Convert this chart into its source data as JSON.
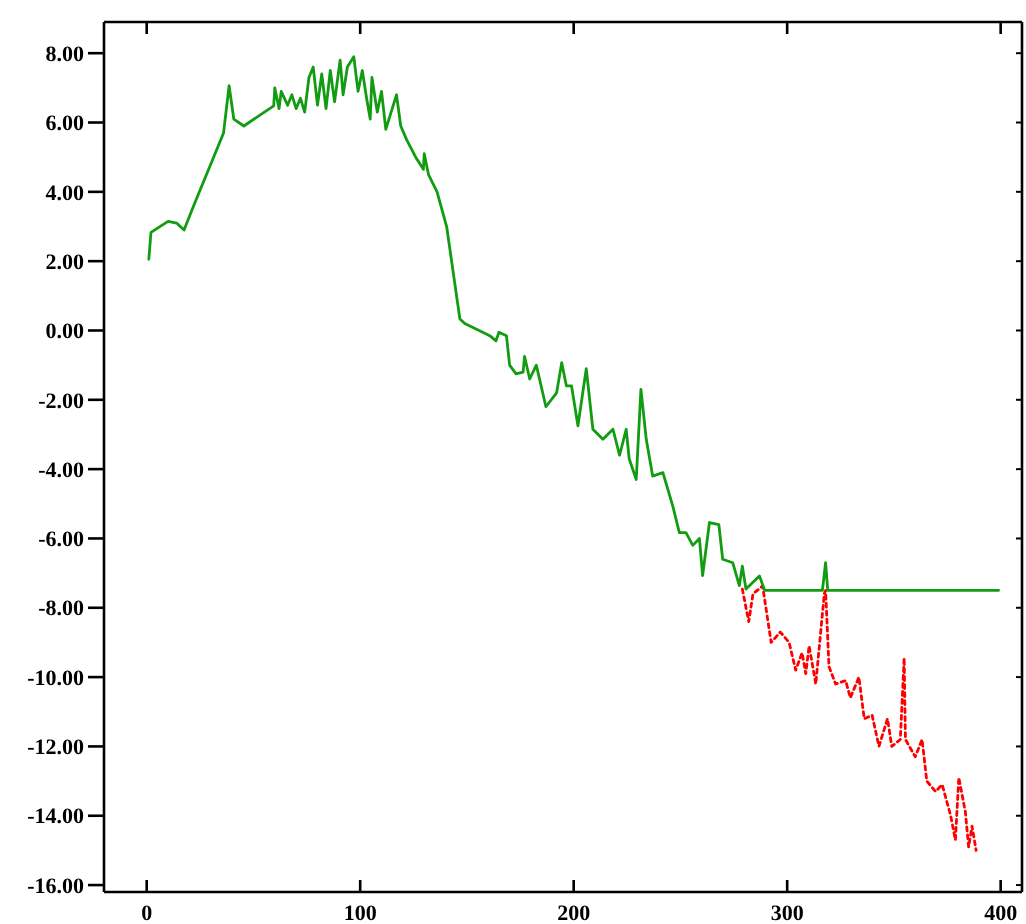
{
  "chart_data": {
    "type": "line",
    "xlim": [
      -20,
      410
    ],
    "ylim": [
      -16.2,
      8.9
    ],
    "xticks": [
      0,
      100,
      200,
      300,
      400
    ],
    "yticks": [
      {
        "value": 8,
        "label": "8.00"
      },
      {
        "value": 6,
        "label": "6.00"
      },
      {
        "value": 4,
        "label": "4.00"
      },
      {
        "value": 2,
        "label": "2.00"
      },
      {
        "value": 0,
        "label": "0.00"
      },
      {
        "value": -2,
        "label": "-2.00"
      },
      {
        "value": -4,
        "label": "-4.00"
      },
      {
        "value": -6,
        "label": "-6.00"
      },
      {
        "value": -8,
        "label": "-8.00"
      },
      {
        "value": -10,
        "label": "-10.00"
      },
      {
        "value": -12,
        "label": "-12.00"
      },
      {
        "value": -14,
        "label": "-14.00"
      },
      {
        "value": -16,
        "label": "-16.00"
      }
    ],
    "marker": "none",
    "series": [
      {
        "color": "#ff0000",
        "line_style": "dotted",
        "x": [
          279,
          282,
          284,
          288.5,
          292.5,
          296.8,
          300.9,
          304,
          307,
          308.7,
          310.3,
          313.4,
          317.4,
          318,
          319.6,
          322.7,
          327.4,
          329.6,
          333.6,
          336.1,
          339.8,
          343,
          347,
          349,
          353,
          354.8,
          355.4,
          360,
          363.2,
          365.4,
          369.5,
          372.6,
          376.6,
          378.8,
          380.4,
          383.5,
          385,
          386.6,
          388.5
        ],
        "values": [
          -7.46,
          -8.4,
          -7.6,
          -7.37,
          -9.0,
          -8.7,
          -9.0,
          -9.8,
          -9.3,
          -9.9,
          -9.1,
          -10.2,
          -7.6,
          -7.5,
          -9.7,
          -10.2,
          -10.1,
          -10.6,
          -10.0,
          -11.2,
          -11.1,
          -12.0,
          -11.2,
          -12.0,
          -11.8,
          -9.45,
          -11.8,
          -12.3,
          -11.8,
          -13.0,
          -13.3,
          -13.1,
          -14.0,
          -14.7,
          -12.9,
          -13.9,
          -14.9,
          -14.3,
          -15.0
        ]
      },
      {
        "color": "#119c11",
        "line_style": "solid",
        "x": [
          1,
          2,
          10,
          14,
          17.5,
          22,
          36,
          38.6,
          40.8,
          45.5,
          59.5,
          60,
          62,
          63,
          66,
          68,
          70,
          72,
          74,
          76,
          78,
          80,
          82,
          84,
          86,
          88,
          90.6,
          92,
          94,
          97,
          99,
          101,
          103,
          104.7,
          105.5,
          108,
          110,
          112,
          117,
          119,
          121.8,
          126,
          129.6,
          130,
          132,
          136,
          140.5,
          146.7,
          149,
          160.7,
          163.6,
          165,
          168.5,
          170,
          173,
          176.3,
          177,
          179.4,
          182.5,
          187,
          192,
          194.4,
          196.6,
          199,
          202,
          205.9,
          209,
          213.7,
          218.4,
          221.5,
          224.6,
          226,
          229.3,
          231.5,
          234,
          237,
          241.8,
          246.4,
          249.5,
          252.6,
          255.8,
          258.9,
          260.4,
          263.6,
          268,
          269.8,
          274.5,
          277.6,
          279,
          280.7,
          287,
          289.5,
          316.5,
          318,
          319,
          399
        ],
        "values": [
          2.06,
          2.83,
          3.15,
          3.1,
          2.9,
          3.6,
          5.7,
          7.06,
          6.1,
          5.9,
          6.48,
          7.0,
          6.4,
          6.9,
          6.5,
          6.8,
          6.4,
          6.7,
          6.3,
          7.3,
          7.6,
          6.5,
          7.4,
          6.4,
          7.5,
          6.6,
          7.8,
          6.8,
          7.6,
          7.9,
          6.9,
          7.5,
          6.7,
          6.1,
          7.3,
          6.3,
          6.9,
          5.8,
          6.8,
          5.9,
          5.5,
          5.0,
          4.65,
          5.1,
          4.5,
          4.0,
          3.0,
          0.33,
          0.2,
          -0.15,
          -0.3,
          -0.05,
          -0.15,
          -1.0,
          -1.25,
          -1.2,
          -0.75,
          -1.4,
          -1.0,
          -2.2,
          -1.8,
          -0.93,
          -1.6,
          -1.6,
          -2.75,
          -1.1,
          -2.85,
          -3.14,
          -2.85,
          -3.6,
          -2.85,
          -3.7,
          -4.3,
          -1.7,
          -3.14,
          -4.2,
          -4.1,
          -5.06,
          -5.83,
          -5.83,
          -6.2,
          -6.0,
          -7.07,
          -5.54,
          -5.6,
          -6.6,
          -6.7,
          -7.36,
          -6.8,
          -7.46,
          -7.08,
          -7.5,
          -7.5,
          -6.7,
          -7.5,
          -7.5
        ]
      }
    ]
  }
}
